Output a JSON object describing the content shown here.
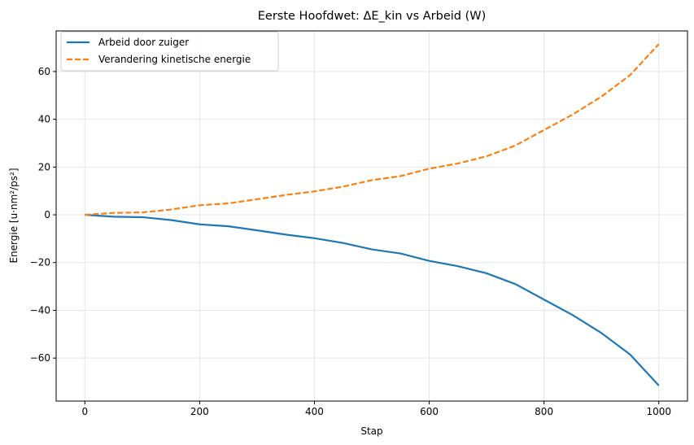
{
  "chart_data": {
    "type": "line",
    "title": "Eerste Hoofdwet: ΔE_kin vs Arbeid (W)",
    "xlabel": "Stap",
    "ylabel": "Energie [u·nm²/ps²]",
    "xlim": [
      -50,
      1050
    ],
    "ylim": [
      -78,
      77
    ],
    "xticks": [
      0,
      200,
      400,
      600,
      800,
      1000
    ],
    "yticks": [
      -60,
      -40,
      -20,
      0,
      20,
      40,
      60
    ],
    "grid": true,
    "legend": "top-left",
    "x": [
      0,
      50,
      100,
      150,
      200,
      250,
      300,
      350,
      400,
      450,
      500,
      550,
      600,
      650,
      700,
      750,
      800,
      850,
      900,
      950,
      1000
    ],
    "series": [
      {
        "name": "Arbeid door zuiger",
        "color": "#1f77b4",
        "style": "solid",
        "values": [
          0,
          -0.8,
          -1,
          -2.2,
          -4,
          -4.8,
          -6.5,
          -8.3,
          -9.8,
          -11.8,
          -14.5,
          -16.2,
          -19.3,
          -21.5,
          -24.5,
          -29,
          -35.5,
          -42,
          -49.5,
          -58.5,
          -71.5
        ]
      },
      {
        "name": "Verandering kinetische energie",
        "color": "#ff7f0e",
        "style": "dashed",
        "values": [
          0,
          0.8,
          1,
          2.2,
          4,
          4.8,
          6.5,
          8.3,
          9.8,
          11.8,
          14.5,
          16.2,
          19.3,
          21.5,
          24.5,
          29,
          35.5,
          42,
          49.5,
          58.5,
          71.5
        ]
      }
    ]
  }
}
